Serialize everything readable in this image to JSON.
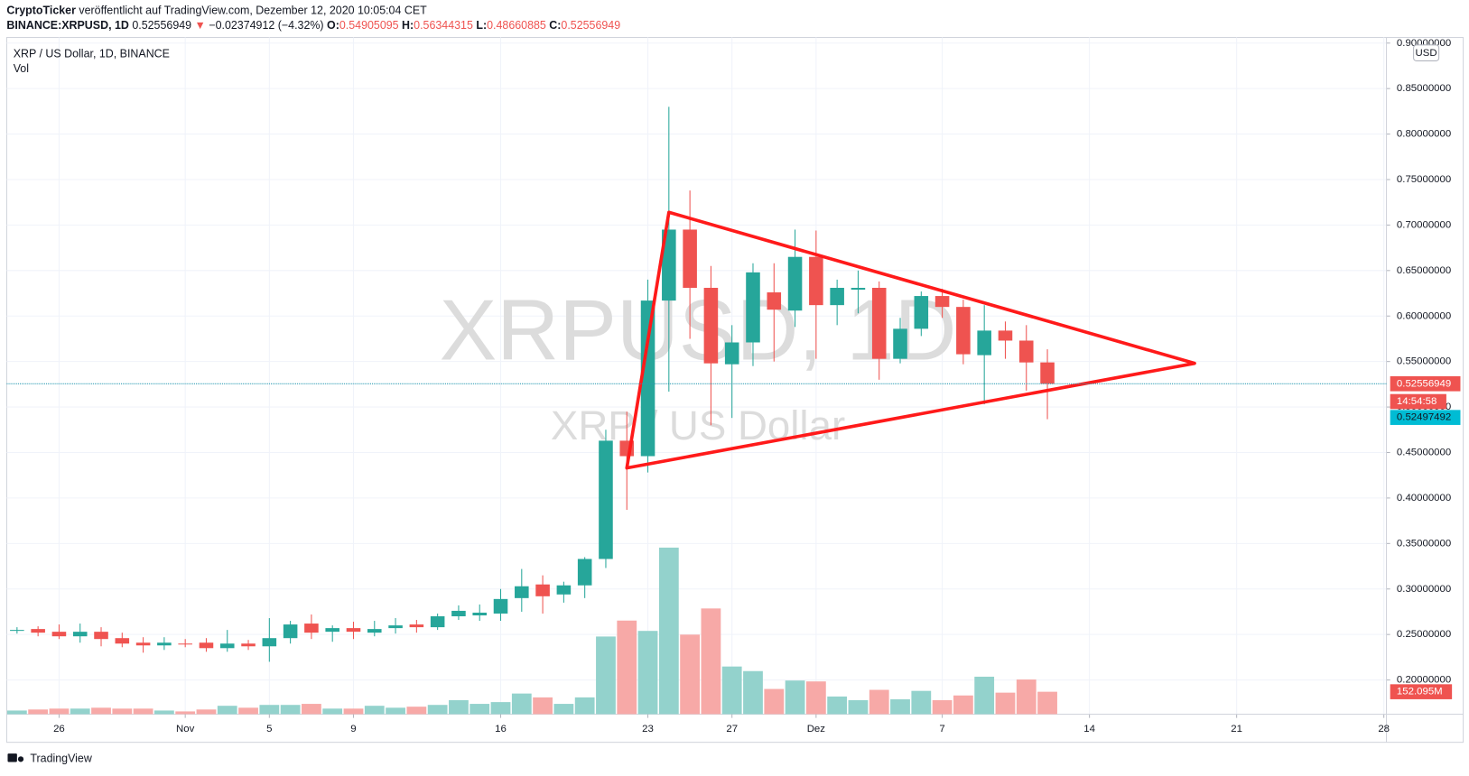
{
  "header": {
    "publisher": "CryptoTicker",
    "published": "veröffentlicht auf TradingView.com, Dezember 12, 2020 10:05:04 CET",
    "symbol": "BINANCE:XRPUSD, 1D",
    "arrow": "▼",
    "change": "−0.02374912 (−4.32%)",
    "ohlc_labels": [
      "O:",
      "H:",
      "L:",
      "C:"
    ]
  },
  "chart_data": {
    "type": "candlestick",
    "title": "XRP / US Dollar, 1D, BINANCE",
    "watermark": [
      "XRPUSD, 1D",
      "XRP / US Dollar"
    ],
    "x": [
      "2020-10-24",
      "2020-10-25",
      "2020-10-26",
      "2020-10-27",
      "2020-10-28",
      "2020-10-29",
      "2020-10-30",
      "2020-10-31",
      "2020-11-01",
      "2020-11-02",
      "2020-11-03",
      "2020-11-04",
      "2020-11-05",
      "2020-11-06",
      "2020-11-07",
      "2020-11-08",
      "2020-11-09",
      "2020-11-10",
      "2020-11-11",
      "2020-11-12",
      "2020-11-13",
      "2020-11-14",
      "2020-11-15",
      "2020-11-16",
      "2020-11-17",
      "2020-11-18",
      "2020-11-19",
      "2020-11-20",
      "2020-11-21",
      "2020-11-22",
      "2020-11-23",
      "2020-11-24",
      "2020-11-25",
      "2020-11-26",
      "2020-11-27",
      "2020-11-28",
      "2020-11-29",
      "2020-11-30",
      "2020-12-01",
      "2020-12-02",
      "2020-12-03",
      "2020-12-04",
      "2020-12-05",
      "2020-12-06",
      "2020-12-07",
      "2020-12-08",
      "2020-12-09",
      "2020-12-10",
      "2020-12-11",
      "2020-12-12"
    ],
    "open": [
      0.254,
      0.256,
      0.253,
      0.248,
      0.253,
      0.246,
      0.241,
      0.238,
      0.24,
      0.241,
      0.235,
      0.24,
      0.237,
      0.246,
      0.262,
      0.253,
      0.257,
      0.252,
      0.257,
      0.261,
      0.258,
      0.27,
      0.271,
      0.273,
      0.29,
      0.305,
      0.294,
      0.304,
      0.333,
      0.463,
      0.446,
      0.617,
      0.695,
      0.631,
      0.547,
      0.571,
      0.626,
      0.606,
      0.665,
      0.612,
      0.629,
      0.631,
      0.553,
      0.586,
      0.622,
      0.61,
      0.557,
      0.584,
      0.573,
      0.54905095
    ],
    "high": [
      0.258,
      0.259,
      0.261,
      0.262,
      0.258,
      0.252,
      0.247,
      0.247,
      0.245,
      0.246,
      0.255,
      0.244,
      0.268,
      0.265,
      0.272,
      0.26,
      0.264,
      0.265,
      0.268,
      0.266,
      0.273,
      0.282,
      0.283,
      0.3,
      0.322,
      0.315,
      0.308,
      0.335,
      0.475,
      0.495,
      0.64,
      0.83,
      0.738,
      0.655,
      0.59,
      0.658,
      0.658,
      0.695,
      0.694,
      0.64,
      0.65,
      0.638,
      0.598,
      0.627,
      0.63,
      0.618,
      0.612,
      0.594,
      0.59,
      0.56344315
    ],
    "low": [
      0.251,
      0.248,
      0.245,
      0.241,
      0.237,
      0.236,
      0.23,
      0.233,
      0.236,
      0.231,
      0.231,
      0.233,
      0.22,
      0.24,
      0.245,
      0.242,
      0.245,
      0.248,
      0.251,
      0.252,
      0.255,
      0.266,
      0.265,
      0.265,
      0.275,
      0.273,
      0.285,
      0.29,
      0.323,
      0.387,
      0.428,
      0.517,
      0.575,
      0.48,
      0.488,
      0.545,
      0.55,
      0.588,
      0.553,
      0.59,
      0.603,
      0.53,
      0.548,
      0.578,
      0.598,
      0.547,
      0.503,
      0.553,
      0.518,
      0.48660885
    ],
    "close": [
      0.255,
      0.252,
      0.248,
      0.253,
      0.245,
      0.24,
      0.238,
      0.241,
      0.239,
      0.235,
      0.24,
      0.237,
      0.246,
      0.261,
      0.252,
      0.257,
      0.253,
      0.256,
      0.26,
      0.258,
      0.27,
      0.276,
      0.274,
      0.289,
      0.303,
      0.292,
      0.304,
      0.333,
      0.463,
      0.446,
      0.617,
      0.695,
      0.631,
      0.548,
      0.571,
      0.648,
      0.607,
      0.665,
      0.612,
      0.631,
      0.631,
      0.553,
      0.586,
      0.622,
      0.61,
      0.558,
      0.584,
      0.573,
      0.549,
      0.52556949
    ],
    "volume": {
      "name": "Vol",
      "values": [
        25,
        32,
        38,
        38,
        44,
        38,
        38,
        25,
        19,
        32,
        57,
        44,
        63,
        63,
        70,
        38,
        38,
        57,
        44,
        51,
        63,
        95,
        70,
        82,
        140,
        114,
        70,
        114,
        526,
        634,
        564,
        1128,
        539,
        716,
        323,
        292,
        171,
        228,
        222,
        120,
        95,
        165,
        101,
        158,
        95,
        127,
        254,
        146,
        235,
        152.095
      ],
      "last_label": "152.095M"
    },
    "up_color": "#26a69a",
    "down_color": "#ef5350",
    "volume_up_color": "#93d2cc",
    "volume_down_color": "#f7a9a7",
    "xlim": [
      "2020-10-23",
      "2020-12-29"
    ],
    "xticks": [
      {
        "value": "2020-10-26",
        "label": "26"
      },
      {
        "value": "2020-11-01",
        "label": "Nov"
      },
      {
        "value": "2020-11-05",
        "label": "5"
      },
      {
        "value": "2020-11-09",
        "label": "9"
      },
      {
        "value": "2020-11-16",
        "label": "16"
      },
      {
        "value": "2020-11-23",
        "label": "23"
      },
      {
        "value": "2020-11-27",
        "label": "27"
      },
      {
        "value": "2020-12-01",
        "label": "Dez"
      },
      {
        "value": "2020-12-07",
        "label": "7"
      },
      {
        "value": "2020-12-14",
        "label": "14"
      },
      {
        "value": "2020-12-21",
        "label": "21"
      },
      {
        "value": "2020-12-28",
        "label": "28"
      }
    ],
    "ylim": [
      0.16,
      0.91
    ],
    "yticks": [
      {
        "value": 0.2,
        "label": "0.20000000"
      },
      {
        "value": 0.25,
        "label": "0.25000000"
      },
      {
        "value": 0.3,
        "label": "0.30000000"
      },
      {
        "value": 0.35,
        "label": "0.35000000"
      },
      {
        "value": 0.4,
        "label": "0.40000000"
      },
      {
        "value": 0.45,
        "label": "0.45000000"
      },
      {
        "value": 0.5,
        "label": "0.50000000"
      },
      {
        "value": 0.55,
        "label": "0.55000000"
      },
      {
        "value": 0.6,
        "label": "0.60000000"
      },
      {
        "value": 0.65,
        "label": "0.65000000"
      },
      {
        "value": 0.7,
        "label": "0.70000000"
      },
      {
        "value": 0.75,
        "label": "0.75000000"
      },
      {
        "value": 0.8,
        "label": "0.80000000"
      },
      {
        "value": 0.85,
        "label": "0.85000000"
      },
      {
        "value": 0.9,
        "label": "0.90000000"
      }
    ],
    "grid": true,
    "countdown": "14:54:58",
    "second_price": 0.52497492,
    "triangle_color": "#ff1a1a",
    "triangle": [
      {
        "x": "2020-11-22",
        "y": 0.433
      },
      {
        "x": "2020-11-24",
        "y": 0.714
      },
      {
        "x": "2020-12-19",
        "y": 0.548
      }
    ],
    "currency": "USD"
  },
  "footer": "TradingView"
}
